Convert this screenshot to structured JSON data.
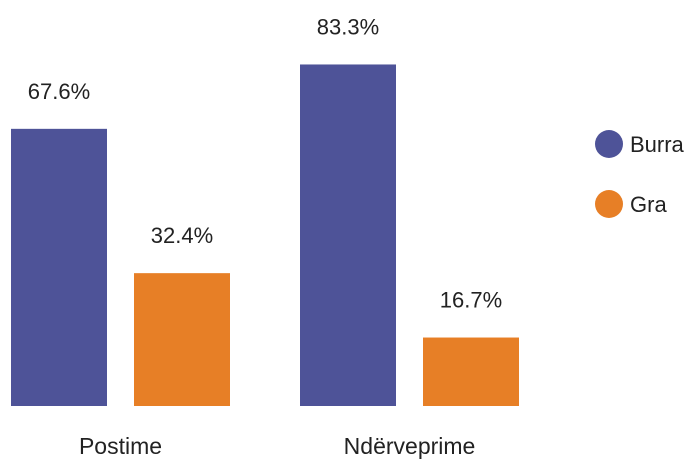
{
  "chart_data": {
    "type": "bar",
    "categories": [
      "Postime",
      "Ndërveprime"
    ],
    "series": [
      {
        "name": "Burra",
        "color": "#4e5398",
        "values": [
          67.6,
          83.3
        ],
        "labels": [
          "67.6%",
          "83.3%"
        ]
      },
      {
        "name": "Gra",
        "color": "#e77f26",
        "values": [
          32.4,
          16.7
        ],
        "labels": [
          "32.4%",
          "16.7%"
        ]
      }
    ],
    "ylim": [
      0,
      100
    ],
    "grid": false,
    "legend_position": "right"
  }
}
